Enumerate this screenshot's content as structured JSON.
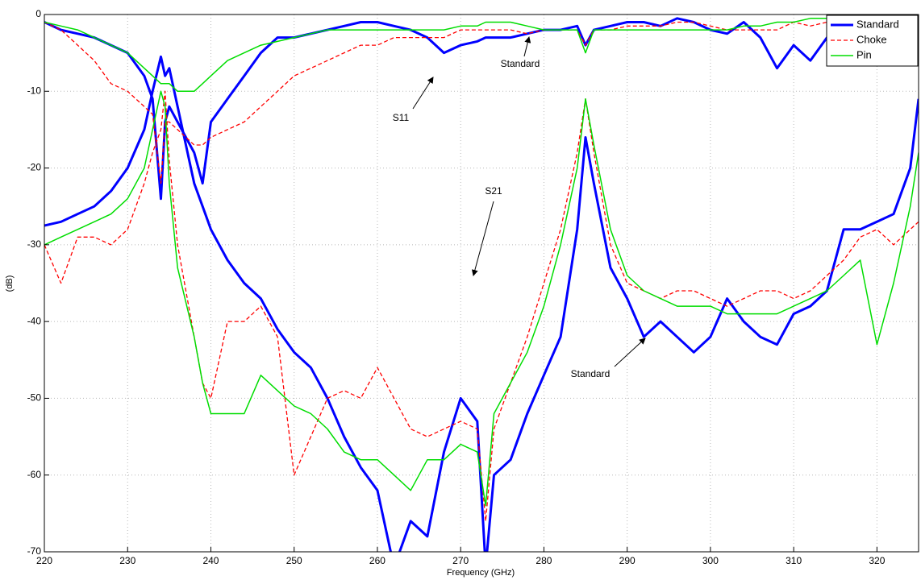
{
  "chart_data": {
    "type": "line",
    "xlabel": "Frequency (GHz)",
    "ylabel": "(dB)",
    "xlim": [
      220,
      325
    ],
    "ylim": [
      -70,
      0
    ],
    "xticks": [
      220,
      230,
      240,
      250,
      260,
      270,
      280,
      290,
      300,
      310,
      320
    ],
    "yticks": [
      -70,
      -60,
      -50,
      -40,
      -30,
      -20,
      -10,
      0
    ],
    "grid": true,
    "legend": "upper right",
    "annotations": [
      "S11",
      "Standard",
      "S21",
      "Standard"
    ],
    "x": [
      220,
      222,
      224,
      226,
      228,
      230,
      232,
      233,
      234,
      234.5,
      235,
      236,
      238,
      239,
      240,
      242,
      244,
      246,
      248,
      250,
      252,
      254,
      256,
      258,
      260,
      262,
      264,
      266,
      268,
      270,
      272,
      273,
      274,
      276,
      278,
      280,
      282,
      284,
      285,
      286,
      288,
      290,
      292,
      294,
      296,
      298,
      300,
      302,
      304,
      306,
      308,
      310,
      312,
      314,
      316,
      318,
      320,
      322,
      324,
      325
    ],
    "series": [
      {
        "name": "Standard",
        "color": "#0000ff",
        "style": "solid",
        "width": 3,
        "values": [
          -27.5,
          -27,
          -26,
          -25,
          -23,
          -20,
          -15,
          -10,
          -5.5,
          -8,
          -7,
          -12,
          -22,
          -25,
          -28,
          -32,
          -35,
          -37,
          -41,
          -44,
          -46,
          -50,
          -55,
          -59,
          -62,
          -72,
          -66,
          -68,
          -57,
          -50,
          -53,
          -72,
          -60,
          -58,
          -52,
          -47,
          -42,
          -28,
          -16,
          -22,
          -33,
          -37,
          -42,
          -40,
          -42,
          -44,
          -42,
          -37,
          -40,
          -42,
          -43,
          -39,
          -38,
          -36,
          -28,
          -28,
          -27,
          -26,
          -20,
          -11
        ],
        "values_s11": [
          -1,
          -2,
          -2.5,
          -3,
          -4,
          -5,
          -8,
          -11,
          -24,
          -14,
          -12,
          -14,
          -18,
          -22,
          -14,
          -11,
          -8,
          -5,
          -3,
          -3,
          -2.5,
          -2,
          -1.5,
          -1,
          -1,
          -1.5,
          -2,
          -3,
          -5,
          -4,
          -3.5,
          -3,
          -3,
          -3,
          -2.5,
          -2,
          -2,
          -1.5,
          -4,
          -2,
          -1.5,
          -1,
          -1,
          -1.5,
          -0.5,
          -1,
          -2,
          -2.5,
          -1,
          -3,
          -7,
          -4,
          -6,
          -3,
          -2,
          -2,
          -3,
          -2,
          -2,
          -2
        ]
      },
      {
        "name": "Choke",
        "color": "#ff0000",
        "style": "dashed",
        "width": 1.3,
        "values": [
          -30,
          -35,
          -29,
          -29,
          -30,
          -28,
          -22,
          -18,
          -15,
          -10,
          -19,
          -30,
          -42,
          -48,
          -50,
          -40,
          -40,
          -38,
          -42,
          -60,
          -55,
          -50,
          -49,
          -50,
          -46,
          -50,
          -54,
          -55,
          -54,
          -53,
          -54,
          -66,
          -54,
          -48,
          -42,
          -35,
          -28,
          -18,
          -11,
          -18,
          -30,
          -35,
          -36,
          -37,
          -36,
          -36,
          -37,
          -38,
          -37,
          -36,
          -36,
          -37,
          -36,
          -34,
          -32,
          -29,
          -28,
          -30,
          -28,
          -27
        ],
        "values_s11": [
          -1,
          -2,
          -4,
          -6,
          -9,
          -10,
          -12,
          -13,
          -22,
          -14,
          -14,
          -15,
          -17,
          -17,
          -16,
          -15,
          -14,
          -12,
          -10,
          -8,
          -7,
          -6,
          -5,
          -4,
          -4,
          -3,
          -3,
          -3,
          -3,
          -2,
          -2,
          -2,
          -2,
          -2,
          -2.5,
          -2,
          -2,
          -2,
          -4,
          -2,
          -2,
          -1.5,
          -1.5,
          -1.5,
          -1,
          -1,
          -1.5,
          -2,
          -2,
          -2,
          -2,
          -1,
          -1.5,
          -1,
          -1,
          -2,
          -3,
          -3,
          -3,
          -3
        ]
      },
      {
        "name": "Pin",
        "color": "#00dd00",
        "style": "solid",
        "width": 1.5,
        "values": [
          -30,
          -29,
          -28,
          -27,
          -26,
          -24,
          -20,
          -15,
          -10,
          -12,
          -22,
          -33,
          -42,
          -48,
          -52,
          -52,
          -52,
          -47,
          -49,
          -51,
          -52,
          -54,
          -57,
          -58,
          -58,
          -60,
          -62,
          -58,
          -58,
          -56,
          -57,
          -64,
          -52,
          -48,
          -44,
          -38,
          -30,
          -20,
          -11,
          -17,
          -28,
          -34,
          -36,
          -37,
          -38,
          -38,
          -38,
          -39,
          -39,
          -39,
          -39,
          -38,
          -37,
          -36,
          -34,
          -32,
          -43,
          -35,
          -25,
          -18
        ],
        "values_s11": [
          -1,
          -1.5,
          -2,
          -3,
          -4,
          -5,
          -7,
          -8,
          -9,
          -9,
          -9,
          -10,
          -10,
          -9,
          -8,
          -6,
          -5,
          -4,
          -3.5,
          -3,
          -2.5,
          -2,
          -2,
          -2,
          -2,
          -2,
          -2,
          -2,
          -2,
          -1.5,
          -1.5,
          -1,
          -1,
          -1,
          -1.5,
          -2,
          -2,
          -2,
          -5,
          -2,
          -2,
          -2,
          -2,
          -2,
          -2,
          -2,
          -2,
          -2,
          -1.5,
          -1.5,
          -1,
          -1,
          -0.5,
          -0.5,
          -1,
          -1,
          -1,
          -1,
          -1,
          -1
        ]
      }
    ]
  }
}
